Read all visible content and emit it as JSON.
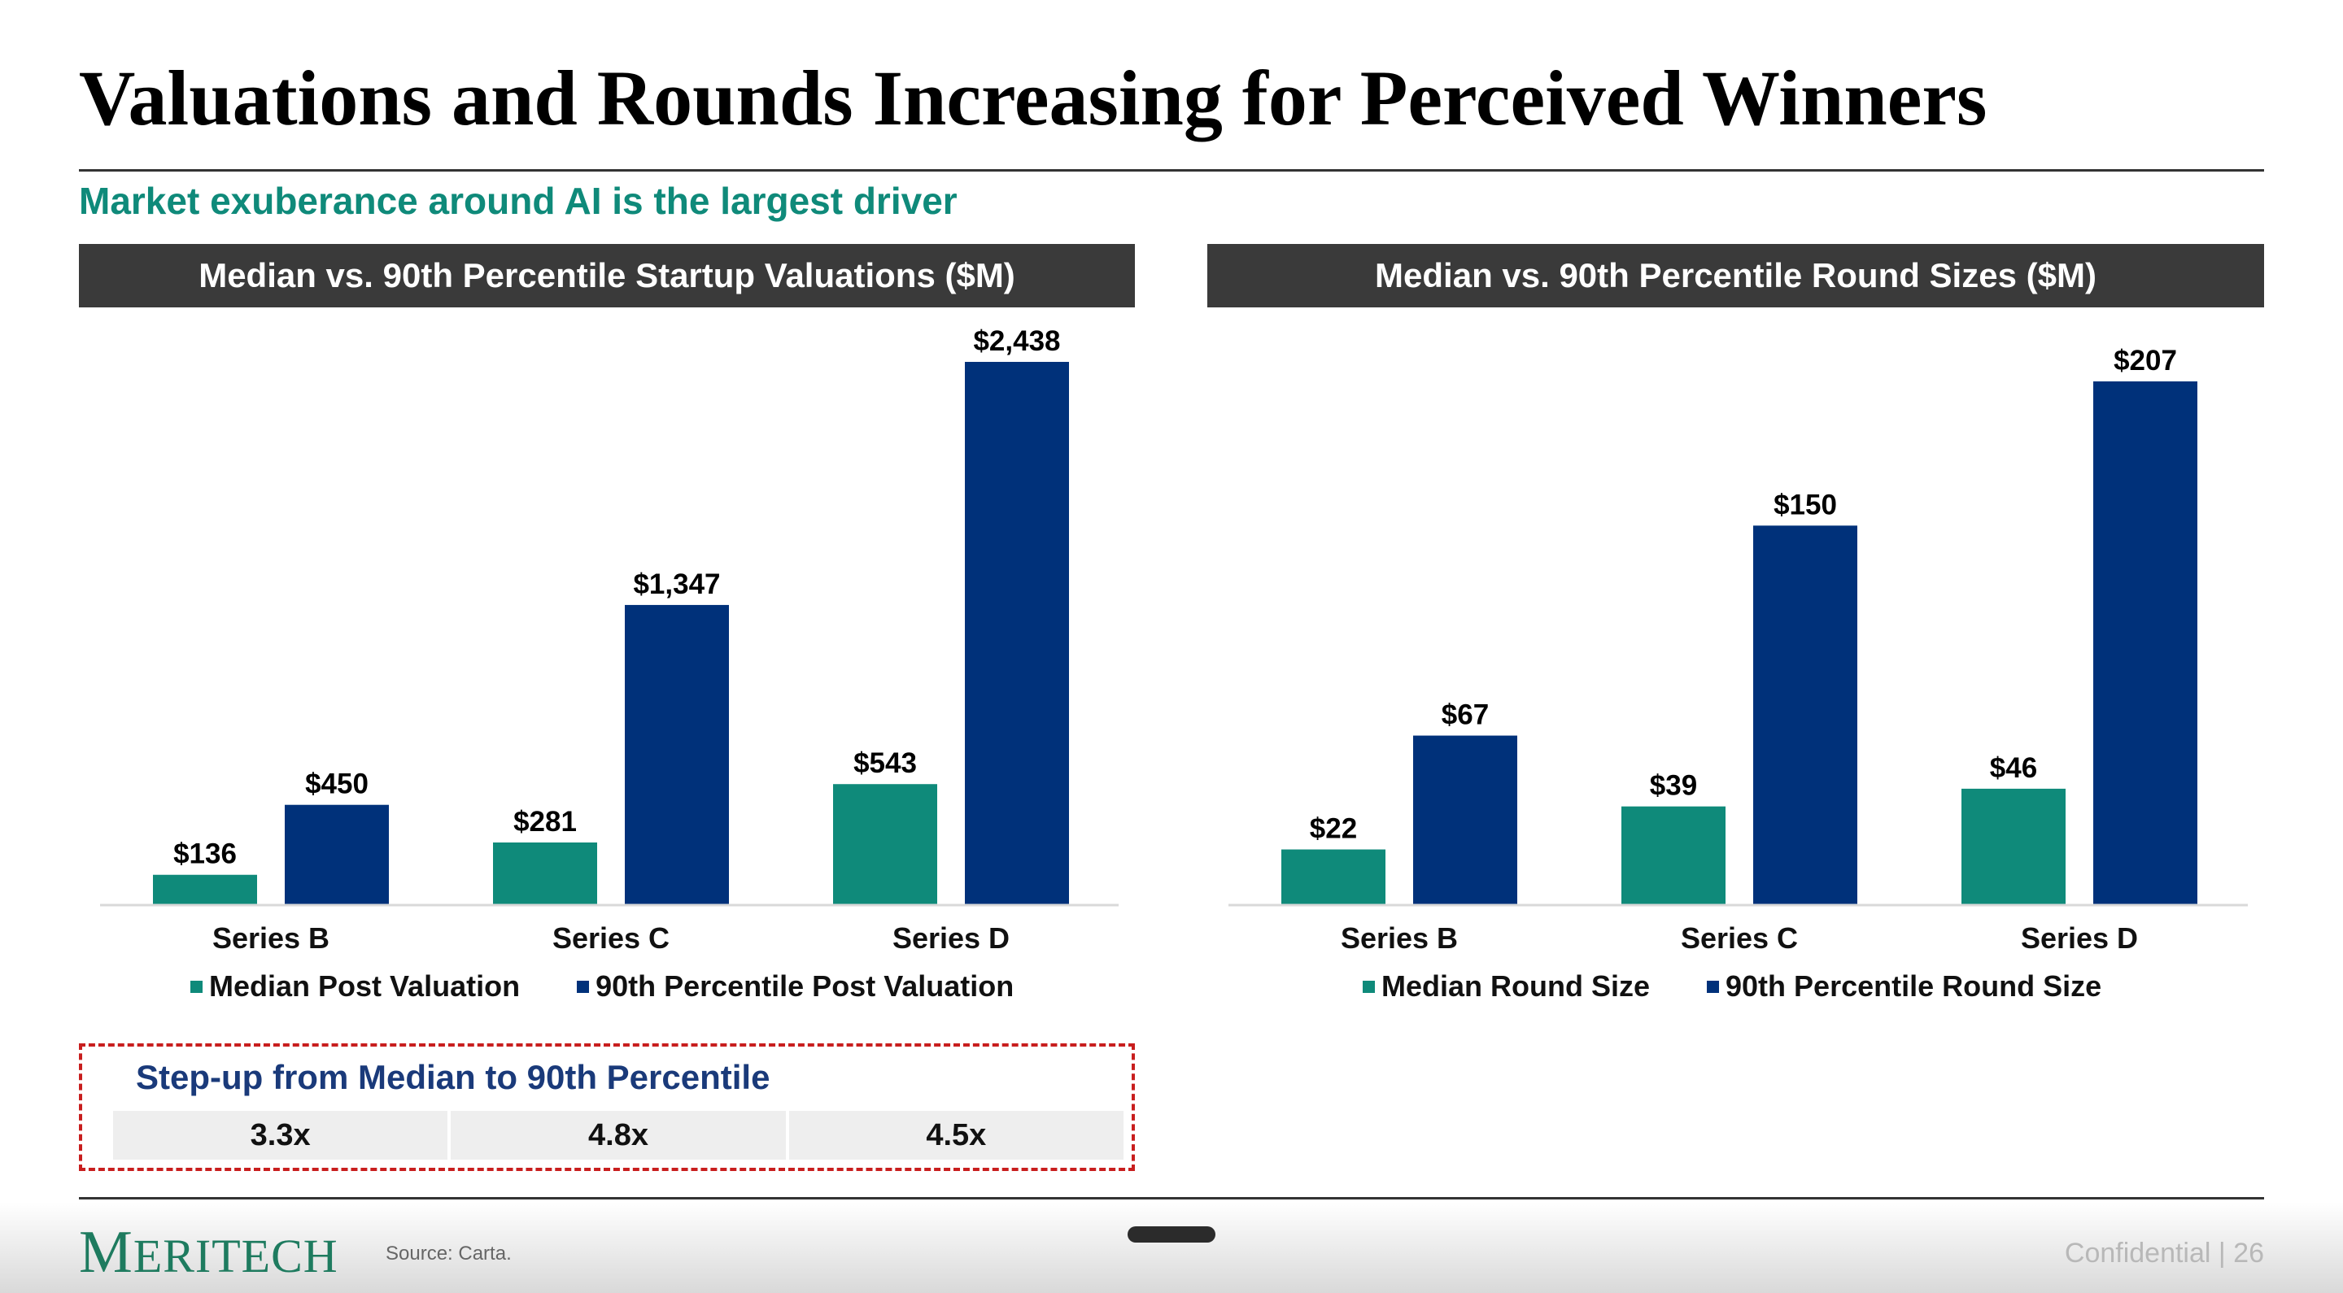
{
  "title": "Valuations and Rounds Increasing for Perceived Winners",
  "subtitle": "Market exuberance around AI is the largest driver",
  "colors": {
    "median": "#0f8a7a",
    "p90": "#00317a",
    "header_bg": "#3a3a3a",
    "accent_text": "#0f8a7a"
  },
  "chart_data": [
    {
      "type": "bar",
      "title": "Median vs. 90th Percentile Startup Valuations ($M)",
      "categories": [
        "Series B",
        "Series C",
        "Series D"
      ],
      "series": [
        {
          "name": "Median Post Valuation",
          "values": [
            136,
            281,
            543
          ],
          "labels": [
            "$136",
            "$281",
            "$543"
          ]
        },
        {
          "name": "90th Percentile Post Valuation",
          "values": [
            450,
            1347,
            2438
          ],
          "labels": [
            "$450",
            "$1,347",
            "$2,438"
          ]
        }
      ],
      "ylim": [
        0,
        2438
      ],
      "legend": "bottom",
      "grid": false
    },
    {
      "type": "bar",
      "title": "Median vs. 90th Percentile Round Sizes ($M)",
      "categories": [
        "Series B",
        "Series C",
        "Series D"
      ],
      "series": [
        {
          "name": "Median Round Size",
          "values": [
            22,
            39,
            46
          ],
          "labels": [
            "$22",
            "$39",
            "$46"
          ]
        },
        {
          "name": "90th Percentile Round Size",
          "values": [
            67,
            150,
            207
          ],
          "labels": [
            "$67",
            "$150",
            "$207"
          ]
        }
      ],
      "ylim": [
        0,
        207
      ],
      "legend": "bottom",
      "grid": false
    }
  ],
  "stepup": {
    "title": "Step-up from Median to 90th Percentile",
    "values": [
      "3.3x",
      "4.8x",
      "4.5x"
    ]
  },
  "footer": {
    "logo_initial": "M",
    "logo_rest": "ERITECH",
    "source": "Source: Carta.",
    "confidential": "Confidential | 26"
  }
}
